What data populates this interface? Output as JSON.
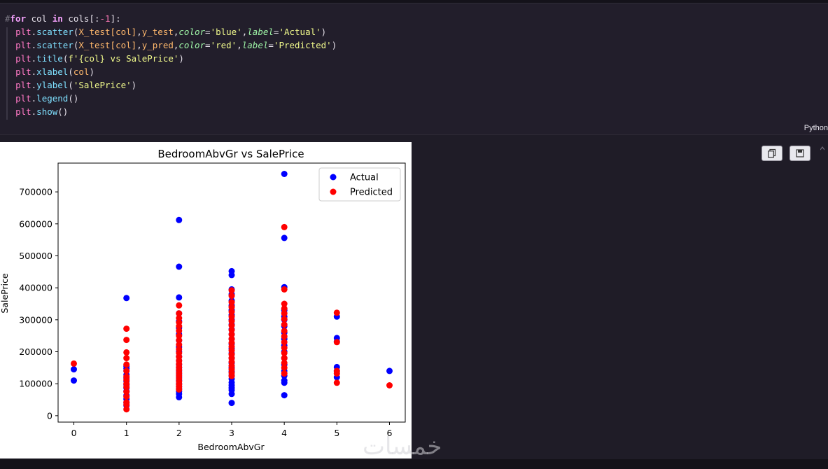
{
  "code_cell": {
    "lines": [
      [
        {
          "t": "#",
          "c": "cmt"
        },
        {
          "t": "for",
          "c": "kw"
        },
        {
          "t": " col ",
          "c": ""
        },
        {
          "t": "in",
          "c": "kw"
        },
        {
          "t": " cols[:",
          "c": ""
        },
        {
          "t": "-1",
          "c": "num"
        },
        {
          "t": "]:",
          "c": ""
        }
      ],
      [
        {
          "t": "  ",
          "c": ""
        },
        {
          "t": "plt",
          "c": "obj"
        },
        {
          "t": ".",
          "c": ""
        },
        {
          "t": "scatter",
          "c": "fn"
        },
        {
          "t": "(",
          "c": ""
        },
        {
          "t": "X_test[col]",
          "c": "arg"
        },
        {
          "t": ",",
          "c": ""
        },
        {
          "t": "y_test",
          "c": "arg"
        },
        {
          "t": ",",
          "c": ""
        },
        {
          "t": "color",
          "c": "param"
        },
        {
          "t": "=",
          "c": ""
        },
        {
          "t": "'blue'",
          "c": "str"
        },
        {
          "t": ",",
          "c": ""
        },
        {
          "t": "label",
          "c": "param"
        },
        {
          "t": "=",
          "c": ""
        },
        {
          "t": "'Actual'",
          "c": "str"
        },
        {
          "t": ")",
          "c": ""
        }
      ],
      [
        {
          "t": "  ",
          "c": ""
        },
        {
          "t": "plt",
          "c": "obj"
        },
        {
          "t": ".",
          "c": ""
        },
        {
          "t": "scatter",
          "c": "fn"
        },
        {
          "t": "(",
          "c": ""
        },
        {
          "t": "X_test[col]",
          "c": "arg"
        },
        {
          "t": ",",
          "c": ""
        },
        {
          "t": "y_pred",
          "c": "arg"
        },
        {
          "t": ",",
          "c": ""
        },
        {
          "t": "color",
          "c": "param"
        },
        {
          "t": "=",
          "c": ""
        },
        {
          "t": "'red'",
          "c": "str"
        },
        {
          "t": ",",
          "c": ""
        },
        {
          "t": "label",
          "c": "param"
        },
        {
          "t": "=",
          "c": ""
        },
        {
          "t": "'Predicted'",
          "c": "str"
        },
        {
          "t": ")",
          "c": ""
        }
      ],
      [
        {
          "t": "  ",
          "c": ""
        },
        {
          "t": "plt",
          "c": "obj"
        },
        {
          "t": ".",
          "c": ""
        },
        {
          "t": "title",
          "c": "fn"
        },
        {
          "t": "(",
          "c": ""
        },
        {
          "t": "f'{col} vs SalePrice'",
          "c": "str"
        },
        {
          "t": ")",
          "c": ""
        }
      ],
      [
        {
          "t": "  ",
          "c": ""
        },
        {
          "t": "plt",
          "c": "obj"
        },
        {
          "t": ".",
          "c": ""
        },
        {
          "t": "xlabel",
          "c": "fn"
        },
        {
          "t": "(",
          "c": ""
        },
        {
          "t": "col",
          "c": "arg"
        },
        {
          "t": ")",
          "c": ""
        }
      ],
      [
        {
          "t": "  ",
          "c": ""
        },
        {
          "t": "plt",
          "c": "obj"
        },
        {
          "t": ".",
          "c": ""
        },
        {
          "t": "ylabel",
          "c": "fn"
        },
        {
          "t": "(",
          "c": ""
        },
        {
          "t": "'SalePrice'",
          "c": "str"
        },
        {
          "t": ")",
          "c": ""
        }
      ],
      [
        {
          "t": "  ",
          "c": ""
        },
        {
          "t": "plt",
          "c": "obj"
        },
        {
          "t": ".",
          "c": ""
        },
        {
          "t": "legend",
          "c": "fn"
        },
        {
          "t": "()",
          "c": ""
        }
      ],
      [
        {
          "t": "  ",
          "c": ""
        },
        {
          "t": "plt",
          "c": "obj"
        },
        {
          "t": ".",
          "c": ""
        },
        {
          "t": "show",
          "c": "fn"
        },
        {
          "t": "()",
          "c": ""
        }
      ]
    ],
    "language_label": "Python"
  },
  "toolbar": {
    "copy_icon": "copy-icon",
    "save_icon": "save-icon"
  },
  "watermark": "خمسات",
  "colors": {
    "actual": "#0000ff",
    "predicted": "#ff0000",
    "background": "#1f1c27"
  },
  "chart_data": {
    "type": "scatter",
    "title": "BedroomAbvGr vs SalePrice",
    "xlabel": "BedroomAbvGr",
    "ylabel": "SalePrice",
    "xlim": [
      -0.3,
      6.3
    ],
    "ylim": [
      -20000,
      790000
    ],
    "xticks": [
      0,
      1,
      2,
      3,
      4,
      5,
      6
    ],
    "xtick_labels": [
      "0",
      "1",
      "2",
      "3",
      "4",
      "5",
      "6"
    ],
    "yticks": [
      0,
      100000,
      200000,
      300000,
      400000,
      500000,
      600000,
      700000
    ],
    "ytick_labels": [
      "0",
      "100000",
      "200000",
      "300000",
      "400000",
      "500000",
      "600000",
      "700000"
    ],
    "grid": false,
    "legend_position": "top-right",
    "series": [
      {
        "name": "Actual",
        "color": "#0000ff",
        "points": [
          [
            0,
            145000
          ],
          [
            0,
            110000
          ],
          [
            1,
            368000
          ],
          [
            1,
            155000
          ],
          [
            1,
            148000
          ],
          [
            1,
            140000
          ],
          [
            1,
            128000
          ],
          [
            1,
            118000
          ],
          [
            1,
            108000
          ],
          [
            1,
            97000
          ],
          [
            1,
            87000
          ],
          [
            1,
            76000
          ],
          [
            1,
            63000
          ],
          [
            1,
            52000
          ],
          [
            1,
            40000
          ],
          [
            1,
            32000
          ],
          [
            2,
            612000
          ],
          [
            2,
            466000
          ],
          [
            2,
            370000
          ],
          [
            2,
            320000
          ],
          [
            2,
            295000
          ],
          [
            2,
            275000
          ],
          [
            2,
            255000
          ],
          [
            2,
            235000
          ],
          [
            2,
            215000
          ],
          [
            2,
            200000
          ],
          [
            2,
            185000
          ],
          [
            2,
            172000
          ],
          [
            2,
            160000
          ],
          [
            2,
            150000
          ],
          [
            2,
            140000
          ],
          [
            2,
            130000
          ],
          [
            2,
            120000
          ],
          [
            2,
            110000
          ],
          [
            2,
            100000
          ],
          [
            2,
            92000
          ],
          [
            2,
            84000
          ],
          [
            2,
            76000
          ],
          [
            2,
            68000
          ],
          [
            2,
            58000
          ],
          [
            3,
            452000
          ],
          [
            3,
            440000
          ],
          [
            3,
            395000
          ],
          [
            3,
            380000
          ],
          [
            3,
            360000
          ],
          [
            3,
            345000
          ],
          [
            3,
            330000
          ],
          [
            3,
            315000
          ],
          [
            3,
            300000
          ],
          [
            3,
            285000
          ],
          [
            3,
            270000
          ],
          [
            3,
            255000
          ],
          [
            3,
            240000
          ],
          [
            3,
            225000
          ],
          [
            3,
            210000
          ],
          [
            3,
            195000
          ],
          [
            3,
            180000
          ],
          [
            3,
            165000
          ],
          [
            3,
            150000
          ],
          [
            3,
            138000
          ],
          [
            3,
            126000
          ],
          [
            3,
            115000
          ],
          [
            3,
            104000
          ],
          [
            3,
            95000
          ],
          [
            3,
            87000
          ],
          [
            3,
            80000
          ],
          [
            3,
            68000
          ],
          [
            3,
            40000
          ],
          [
            4,
            756000
          ],
          [
            4,
            556000
          ],
          [
            4,
            402000
          ],
          [
            4,
            330000
          ],
          [
            4,
            310000
          ],
          [
            4,
            300000
          ],
          [
            4,
            280000
          ],
          [
            4,
            260000
          ],
          [
            4,
            240000
          ],
          [
            4,
            220000
          ],
          [
            4,
            200000
          ],
          [
            4,
            180000
          ],
          [
            4,
            160000
          ],
          [
            4,
            140000
          ],
          [
            4,
            125000
          ],
          [
            4,
            110000
          ],
          [
            4,
            103000
          ],
          [
            4,
            64000
          ],
          [
            5,
            310000
          ],
          [
            5,
            243000
          ],
          [
            5,
            232000
          ],
          [
            5,
            152000
          ],
          [
            5,
            140000
          ],
          [
            5,
            120000
          ],
          [
            6,
            140000
          ]
        ]
      },
      {
        "name": "Predicted",
        "color": "#ff0000",
        "points": [
          [
            0,
            163000
          ],
          [
            1,
            272000
          ],
          [
            1,
            237000
          ],
          [
            1,
            198000
          ],
          [
            1,
            180000
          ],
          [
            1,
            160000
          ],
          [
            1,
            140000
          ],
          [
            1,
            122000
          ],
          [
            1,
            112000
          ],
          [
            1,
            100000
          ],
          [
            1,
            90000
          ],
          [
            1,
            75000
          ],
          [
            1,
            60000
          ],
          [
            1,
            42000
          ],
          [
            1,
            35000
          ],
          [
            1,
            20000
          ],
          [
            2,
            345000
          ],
          [
            2,
            320000
          ],
          [
            2,
            305000
          ],
          [
            2,
            292000
          ],
          [
            2,
            280000
          ],
          [
            2,
            266000
          ],
          [
            2,
            250000
          ],
          [
            2,
            236000
          ],
          [
            2,
            222000
          ],
          [
            2,
            208000
          ],
          [
            2,
            196000
          ],
          [
            2,
            184000
          ],
          [
            2,
            172000
          ],
          [
            2,
            162000
          ],
          [
            2,
            152000
          ],
          [
            2,
            143000
          ],
          [
            2,
            134000
          ],
          [
            2,
            125000
          ],
          [
            2,
            116000
          ],
          [
            2,
            107000
          ],
          [
            2,
            98000
          ],
          [
            2,
            90000
          ],
          [
            2,
            82000
          ],
          [
            3,
            392000
          ],
          [
            3,
            375000
          ],
          [
            3,
            355000
          ],
          [
            3,
            340000
          ],
          [
            3,
            325000
          ],
          [
            3,
            310000
          ],
          [
            3,
            296000
          ],
          [
            3,
            282000
          ],
          [
            3,
            268000
          ],
          [
            3,
            254000
          ],
          [
            3,
            240000
          ],
          [
            3,
            228000
          ],
          [
            3,
            216000
          ],
          [
            3,
            204000
          ],
          [
            3,
            192000
          ],
          [
            3,
            180000
          ],
          [
            3,
            168000
          ],
          [
            3,
            156000
          ],
          [
            3,
            145000
          ],
          [
            3,
            134000
          ],
          [
            3,
            124000
          ],
          [
            4,
            590000
          ],
          [
            4,
            395000
          ],
          [
            4,
            350000
          ],
          [
            4,
            335000
          ],
          [
            4,
            320000
          ],
          [
            4,
            302000
          ],
          [
            4,
            285000
          ],
          [
            4,
            265000
          ],
          [
            4,
            248000
          ],
          [
            4,
            230000
          ],
          [
            4,
            212000
          ],
          [
            4,
            196000
          ],
          [
            4,
            180000
          ],
          [
            4,
            165000
          ],
          [
            4,
            150000
          ],
          [
            4,
            132000
          ],
          [
            5,
            322000
          ],
          [
            5,
            230000
          ],
          [
            5,
            140000
          ],
          [
            5,
            132000
          ],
          [
            5,
            103000
          ],
          [
            6,
            95000
          ]
        ]
      }
    ]
  }
}
